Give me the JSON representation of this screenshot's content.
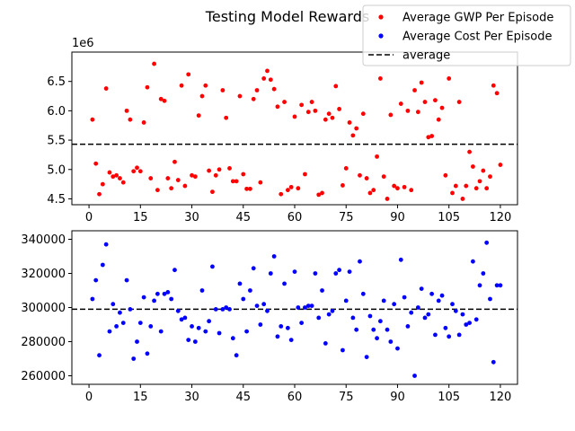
{
  "title": "Testing Model Rewards",
  "colors": {
    "gwp": "#ff0000",
    "cost": "#0000ff",
    "average": "#000000"
  },
  "legend": {
    "placement": "top-right",
    "items": [
      {
        "label": "Average GWP Per Episode",
        "color": "#ff0000",
        "marker": "dot"
      },
      {
        "label": "Average Cost Per Episode",
        "color": "#0000ff",
        "marker": "dot"
      },
      {
        "label": "average",
        "color": "#000000",
        "marker": "dashed-line"
      }
    ]
  },
  "chart_data": [
    {
      "type": "scatter",
      "series_name": "Average GWP Per Episode",
      "offset_label": "1e6",
      "xlim": [
        -5,
        125
      ],
      "ylim": [
        4.4,
        7.0
      ],
      "xticks": [
        0,
        15,
        30,
        45,
        60,
        75,
        90,
        105,
        120
      ],
      "yticks": [
        4.5,
        5.0,
        5.5,
        6.0,
        6.5
      ],
      "ytick_labels": [
        "4.5",
        "5.0",
        "5.5",
        "6.0",
        "6.5"
      ],
      "average": 5.43,
      "grid": false,
      "x": [
        1,
        2,
        3,
        4,
        5,
        6,
        7,
        8,
        9,
        10,
        11,
        12,
        13,
        14,
        15,
        16,
        17,
        18,
        19,
        20,
        21,
        22,
        23,
        24,
        25,
        26,
        27,
        28,
        29,
        30,
        31,
        32,
        33,
        34,
        35,
        36,
        37,
        38,
        39,
        40,
        41,
        42,
        43,
        44,
        45,
        46,
        47,
        48,
        49,
        50,
        51,
        52,
        53,
        54,
        55,
        56,
        57,
        58,
        59,
        60,
        61,
        62,
        63,
        64,
        65,
        66,
        67,
        68,
        69,
        70,
        71,
        72,
        73,
        74,
        75,
        76,
        77,
        78,
        79,
        80,
        81,
        82,
        83,
        84,
        85,
        86,
        87,
        88,
        89,
        90,
        91,
        92,
        93,
        94,
        95,
        96,
        97,
        98,
        99,
        100,
        101,
        102,
        103,
        104,
        105,
        106,
        107,
        108,
        109,
        110,
        111,
        112,
        113,
        114,
        115,
        116,
        117,
        118,
        119,
        120
      ],
      "y": [
        5.85,
        5.1,
        4.58,
        4.75,
        6.38,
        4.95,
        4.88,
        4.9,
        4.85,
        4.78,
        6.0,
        5.85,
        4.97,
        5.03,
        4.97,
        5.8,
        6.4,
        4.85,
        6.8,
        4.65,
        6.2,
        6.17,
        4.85,
        4.68,
        5.13,
        4.82,
        6.43,
        4.72,
        6.62,
        4.9,
        4.88,
        5.92,
        6.25,
        6.43,
        4.98,
        4.62,
        4.9,
        5.0,
        6.35,
        5.88,
        5.02,
        4.8,
        4.8,
        6.25,
        4.92,
        4.67,
        4.67,
        6.2,
        6.35,
        4.78,
        6.55,
        6.68,
        6.53,
        6.37,
        6.07,
        4.58,
        6.15,
        4.65,
        4.7,
        5.9,
        4.68,
        6.1,
        4.92,
        5.98,
        6.15,
        6.0,
        4.57,
        4.6,
        5.85,
        5.95,
        5.88,
        6.42,
        6.03,
        4.73,
        5.02,
        5.8,
        5.58,
        5.7,
        4.9,
        5.95,
        4.85,
        4.6,
        4.65,
        5.22,
        6.55,
        4.88,
        4.5,
        5.93,
        4.72,
        4.68,
        6.12,
        4.7,
        6.0,
        4.65,
        6.35,
        5.98,
        6.48,
        6.15,
        5.55,
        5.57,
        6.18,
        5.85,
        6.05,
        4.9,
        6.55,
        4.6,
        4.72,
        6.15,
        4.5,
        4.72,
        5.3,
        5.05,
        4.68,
        4.8,
        4.98,
        4.68,
        4.88,
        6.43,
        6.3,
        5.08
      ]
    },
    {
      "type": "scatter",
      "series_name": "Average Cost Per Episode",
      "xlim": [
        -5,
        125
      ],
      "ylim": [
        255000,
        345000
      ],
      "xticks": [
        0,
        15,
        30,
        45,
        60,
        75,
        90,
        105,
        120
      ],
      "yticks": [
        260000,
        280000,
        300000,
        320000,
        340000
      ],
      "ytick_labels": [
        "260000",
        "280000",
        "300000",
        "320000",
        "340000"
      ],
      "average": 299000,
      "grid": false,
      "x": [
        1,
        2,
        3,
        4,
        5,
        6,
        7,
        8,
        9,
        10,
        11,
        12,
        13,
        14,
        15,
        16,
        17,
        18,
        19,
        20,
        21,
        22,
        23,
        24,
        25,
        26,
        27,
        28,
        29,
        30,
        31,
        32,
        33,
        34,
        35,
        36,
        37,
        38,
        39,
        40,
        41,
        42,
        43,
        44,
        45,
        46,
        47,
        48,
        49,
        50,
        51,
        52,
        53,
        54,
        55,
        56,
        57,
        58,
        59,
        60,
        61,
        62,
        63,
        64,
        65,
        66,
        67,
        68,
        69,
        70,
        71,
        72,
        73,
        74,
        75,
        76,
        77,
        78,
        79,
        80,
        81,
        82,
        83,
        84,
        85,
        86,
        87,
        88,
        89,
        90,
        91,
        92,
        93,
        94,
        95,
        96,
        97,
        98,
        99,
        100,
        101,
        102,
        103,
        104,
        105,
        106,
        107,
        108,
        109,
        110,
        111,
        112,
        113,
        114,
        115,
        116,
        117,
        118,
        119,
        120
      ],
      "y": [
        305000,
        316000,
        272000,
        325000,
        337000,
        286000,
        302000,
        289000,
        297000,
        291000,
        316000,
        299000,
        270000,
        280000,
        291000,
        306000,
        273000,
        289000,
        304000,
        308000,
        286000,
        308000,
        309000,
        305000,
        322000,
        298000,
        293000,
        294000,
        281000,
        289000,
        280000,
        288000,
        310000,
        286000,
        292000,
        324000,
        299000,
        285000,
        299000,
        300000,
        299000,
        282000,
        272000,
        314000,
        305000,
        286000,
        310000,
        323000,
        301000,
        290000,
        302000,
        298000,
        320000,
        330000,
        283000,
        289000,
        314000,
        288000,
        281000,
        321000,
        300000,
        291000,
        300000,
        301000,
        301000,
        320000,
        294000,
        310000,
        279000,
        296000,
        298000,
        320000,
        322000,
        275000,
        304000,
        321000,
        294000,
        287000,
        327000,
        308000,
        271000,
        295000,
        287000,
        282000,
        292000,
        304000,
        287000,
        280000,
        302000,
        276000,
        328000,
        306000,
        289000,
        297000,
        260000,
        300000,
        311000,
        294000,
        296000,
        308000,
        284000,
        304000,
        307000,
        288000,
        283000,
        302000,
        298000,
        284000,
        296000,
        290000,
        291000,
        327000,
        293000,
        313000,
        320000,
        338000,
        305000,
        268000,
        313000,
        313000
      ]
    }
  ]
}
